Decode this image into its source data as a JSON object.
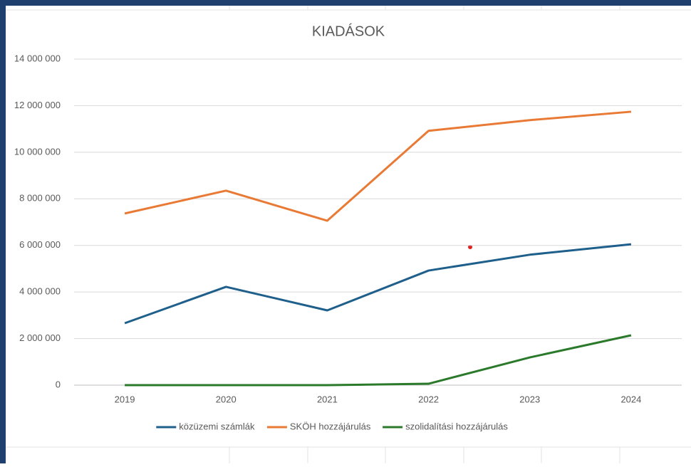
{
  "chart_data": {
    "type": "line",
    "title": "KIADÁSOK",
    "categories": [
      "2019",
      "2020",
      "2021",
      "2022",
      "2023",
      "2024"
    ],
    "series": [
      {
        "name": "közüzemi számlák",
        "color": "#1f5f8b",
        "values": [
          2660000,
          4220000,
          3210000,
          4920000,
          5600000,
          6050000
        ]
      },
      {
        "name": "SKÖH hozzájárulás",
        "color": "#e97a35",
        "values": [
          7370000,
          8350000,
          7060000,
          10920000,
          11380000,
          11740000
        ]
      },
      {
        "name": "szolidalítási hozzájárulás",
        "color": "#2b7a2b",
        "values": [
          0,
          0,
          0,
          60000,
          1190000,
          2140000
        ]
      }
    ],
    "ylim": [
      0,
      14000000
    ],
    "yticks": [
      0,
      {
        "value": 2000000,
        "label": "2 000 000"
      },
      {
        "value": 4000000,
        "label": "4 000 000"
      },
      {
        "value": 6000000,
        "label": "6 000 000"
      },
      {
        "value": 8000000,
        "label": "8 000 000"
      },
      {
        "value": 10000000,
        "label": "10 000 000"
      },
      {
        "value": 12000000,
        "label": "12 000 000"
      },
      {
        "value": 14000000,
        "label": "14 000 000"
      }
    ],
    "grid": true,
    "legend": "bottom"
  }
}
